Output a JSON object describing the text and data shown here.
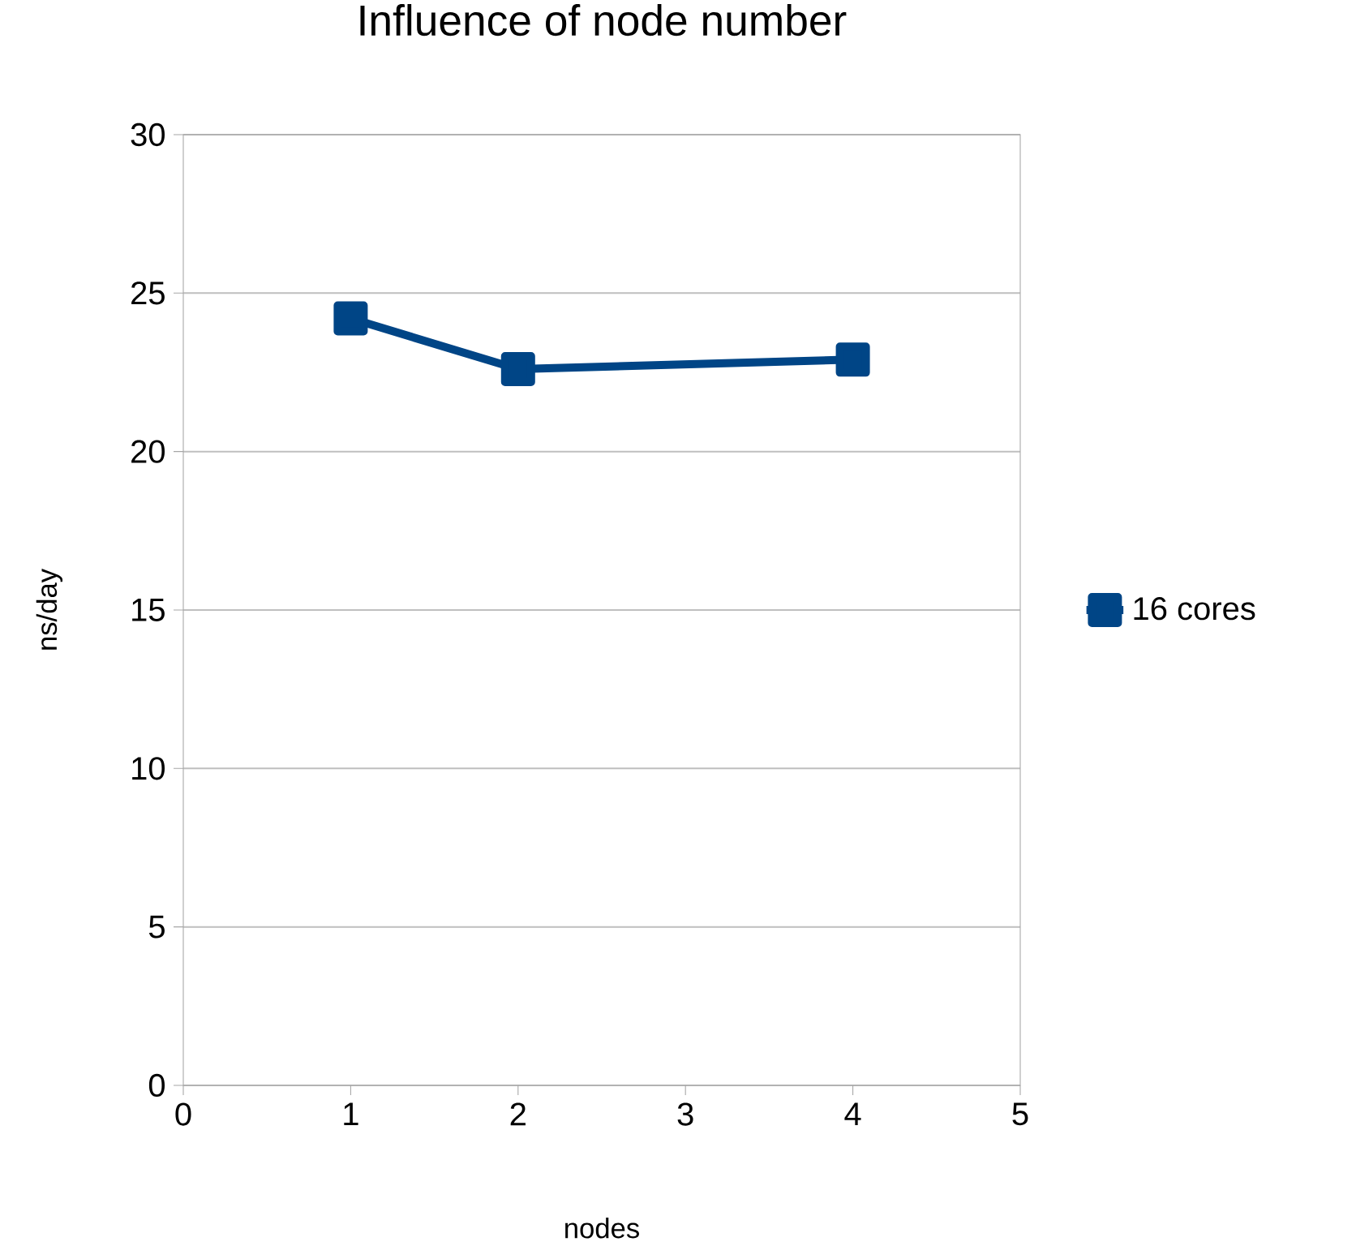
{
  "chart_data": {
    "type": "line",
    "title": "Influence of node number",
    "xlabel": "nodes",
    "ylabel": "ns/day",
    "x": [
      1,
      2,
      4
    ],
    "series": [
      {
        "name": "16 cores",
        "color": "#004586",
        "values": [
          24.2,
          22.6,
          22.9
        ]
      }
    ],
    "xlim": [
      0,
      5
    ],
    "xticks": [
      0,
      1,
      2,
      3,
      4,
      5
    ],
    "ylim": [
      0,
      30
    ],
    "yticks": [
      0,
      5,
      10,
      15,
      20,
      25,
      30
    ],
    "grid": "y",
    "legend": "right",
    "marker": "square",
    "line_style": "solid"
  }
}
